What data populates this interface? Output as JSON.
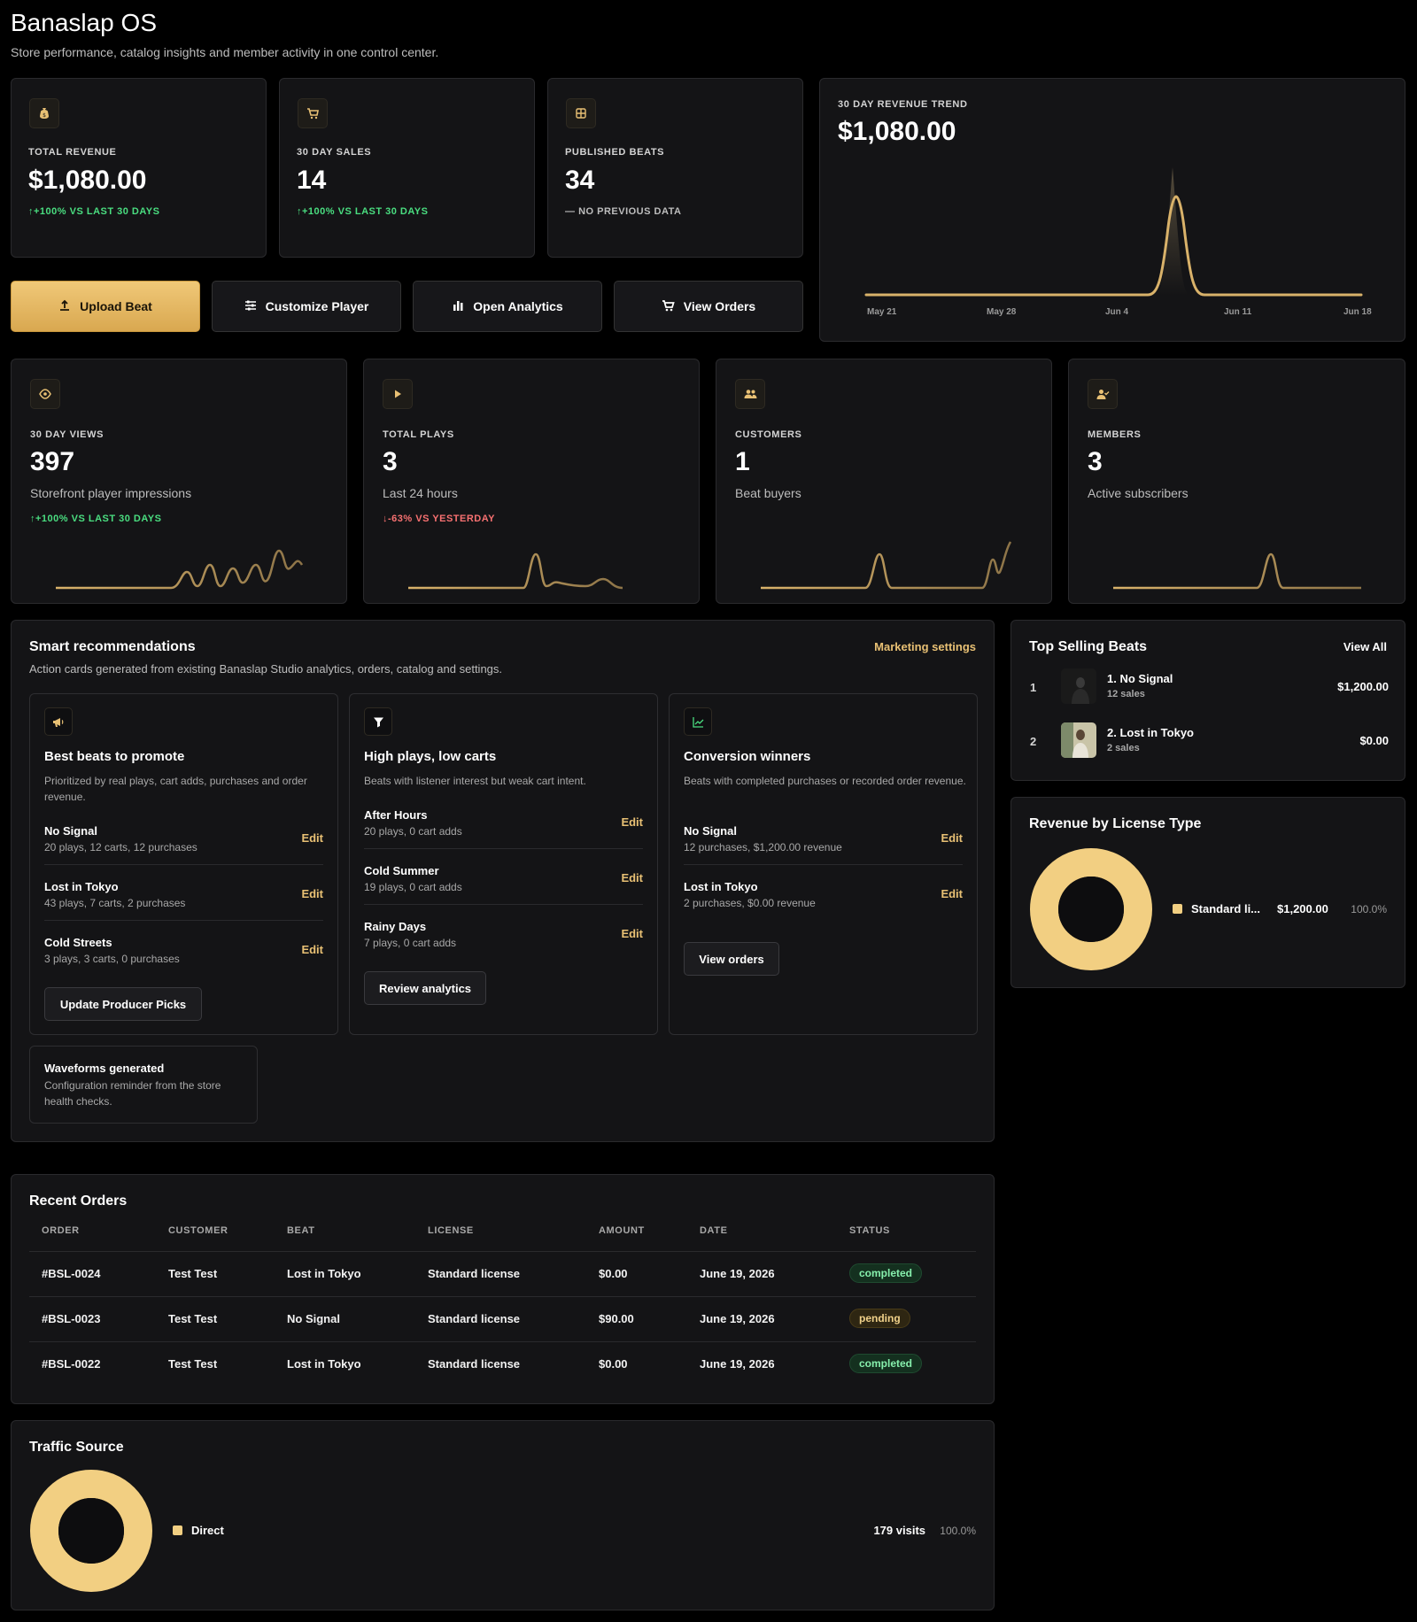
{
  "header": {
    "title": "Banaslap OS",
    "subtitle": "Store performance, catalog insights and member activity in one control center."
  },
  "top_stats": [
    {
      "icon": "money-bag-icon",
      "label": "TOTAL REVENUE",
      "value": "$1,080.00",
      "delta": "+100% VS LAST 30 DAYS",
      "trend": "up"
    },
    {
      "icon": "cart-icon",
      "label": "30 DAY SALES",
      "value": "14",
      "delta": "+100% VS LAST 30 DAYS",
      "trend": "up"
    },
    {
      "icon": "grid-icon",
      "label": "PUBLISHED BEATS",
      "value": "34",
      "delta": "NO PREVIOUS DATA",
      "trend": "neutral"
    }
  ],
  "actions": {
    "upload": "Upload Beat",
    "customize": "Customize Player",
    "analytics": "Open Analytics",
    "orders": "View Orders"
  },
  "trend": {
    "label": "30 DAY REVENUE TREND",
    "value": "$1,080.00",
    "x_ticks": [
      "May 21",
      "May 28",
      "Jun 4",
      "Jun 11",
      "Jun 18"
    ]
  },
  "mini_stats": [
    {
      "icon": "eye-icon",
      "label": "30 DAY VIEWS",
      "value": "397",
      "caption": "Storefront player impressions",
      "delta": "+100% VS LAST 30 DAYS",
      "trend": "up"
    },
    {
      "icon": "play-icon",
      "label": "TOTAL PLAYS",
      "value": "3",
      "caption": "Last 24 hours",
      "delta": "-63% VS YESTERDAY",
      "trend": "down"
    },
    {
      "icon": "users-icon",
      "label": "CUSTOMERS",
      "value": "1",
      "caption": "Beat buyers",
      "delta": "",
      "trend": "none"
    },
    {
      "icon": "user-check-icon",
      "label": "MEMBERS",
      "value": "3",
      "caption": "Active subscribers",
      "delta": "",
      "trend": "none"
    }
  ],
  "recommendations": {
    "title": "Smart recommendations",
    "link": "Marketing settings",
    "subtitle": "Action cards generated from existing Banaslap Studio analytics, orders, catalog and settings.",
    "cards": [
      {
        "icon": "megaphone-icon",
        "title": "Best beats to promote",
        "desc": "Prioritized by real plays, cart adds, purchases and order revenue.",
        "items": [
          {
            "name": "No Signal",
            "meta": "20 plays, 12 carts, 12 purchases",
            "action": "Edit"
          },
          {
            "name": "Lost in Tokyo",
            "meta": "43 plays, 7 carts, 2 purchases",
            "action": "Edit"
          },
          {
            "name": "Cold Streets",
            "meta": "3 plays, 3 carts, 0 purchases",
            "action": "Edit"
          }
        ],
        "button": "Update Producer Picks"
      },
      {
        "icon": "funnel-icon",
        "title": "High plays, low carts",
        "desc": "Beats with listener interest but weak cart intent.",
        "items": [
          {
            "name": "After Hours",
            "meta": "20 plays, 0 cart adds",
            "action": "Edit"
          },
          {
            "name": "Cold Summer",
            "meta": "19 plays, 0 cart adds",
            "action": "Edit"
          },
          {
            "name": "Rainy Days",
            "meta": "7 plays, 0 cart adds",
            "action": "Edit"
          }
        ],
        "button": "Review analytics"
      },
      {
        "icon": "chart-up-icon",
        "title": "Conversion winners",
        "desc": "Beats with completed purchases or recorded order revenue.",
        "items": [
          {
            "name": "No Signal",
            "meta": "12 purchases, $1,200.00 revenue",
            "action": "Edit"
          },
          {
            "name": "Lost in Tokyo",
            "meta": "2 purchases, $0.00 revenue",
            "action": "Edit"
          }
        ],
        "button": "View orders"
      }
    ],
    "notice": {
      "title": "Waveforms generated",
      "desc": "Configuration reminder from the store health checks."
    }
  },
  "top_selling": {
    "title": "Top Selling Beats",
    "link": "View All",
    "items": [
      {
        "rank": "1",
        "name": "1. No Signal",
        "sales": "12 sales",
        "amount": "$1,200.00"
      },
      {
        "rank": "2",
        "name": "2. Lost in Tokyo",
        "sales": "2 sales",
        "amount": "$0.00"
      }
    ]
  },
  "license_revenue": {
    "title": "Revenue by License Type",
    "legend": [
      {
        "label": "Standard li...",
        "amount": "$1,200.00",
        "percent": "100.0%",
        "color": "#f2cf82"
      }
    ]
  },
  "orders": {
    "title": "Recent Orders",
    "columns": [
      "ORDER",
      "CUSTOMER",
      "BEAT",
      "LICENSE",
      "AMOUNT",
      "DATE",
      "STATUS"
    ],
    "rows": [
      {
        "order": "#BSL-0024",
        "customer": "Test Test",
        "beat": "Lost in Tokyo",
        "license": "Standard license",
        "amount": "$0.00",
        "date": "June 19, 2026",
        "status": "completed"
      },
      {
        "order": "#BSL-0023",
        "customer": "Test Test",
        "beat": "No Signal",
        "license": "Standard license",
        "amount": "$90.00",
        "date": "June 19, 2026",
        "status": "pending"
      },
      {
        "order": "#BSL-0022",
        "customer": "Test Test",
        "beat": "Lost in Tokyo",
        "license": "Standard license",
        "amount": "$0.00",
        "date": "June 19, 2026",
        "status": "completed"
      }
    ]
  },
  "traffic": {
    "title": "Traffic Source",
    "legend": [
      {
        "label": "Direct",
        "visits": "179 visits",
        "percent": "100.0%",
        "color": "#f2cf82"
      }
    ]
  },
  "colors": {
    "accent": "#e8c074",
    "background": "#000000",
    "card": "#141416",
    "positive": "#4ade80",
    "negative": "#f87171"
  }
}
